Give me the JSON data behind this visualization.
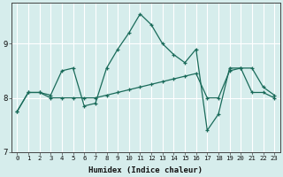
{
  "xlabel": "Humidex (Indice chaleur)",
  "ylabel": "",
  "background_color": "#d6edec",
  "grid_color": "#ffffff",
  "line_color": "#1a6b5a",
  "xlim": [
    -0.5,
    23.5
  ],
  "ylim": [
    7.0,
    9.75
  ],
  "yticks": [
    7,
    8,
    9
  ],
  "xticks": [
    0,
    1,
    2,
    3,
    4,
    5,
    6,
    7,
    8,
    9,
    10,
    11,
    12,
    13,
    14,
    15,
    16,
    17,
    18,
    19,
    20,
    21,
    22,
    23
  ],
  "line1_x": [
    0,
    1,
    2,
    3,
    4,
    5,
    6,
    7,
    8,
    9,
    10,
    11,
    12,
    13,
    14,
    15,
    16,
    17,
    18,
    19,
    20,
    21,
    22,
    23
  ],
  "line1_y": [
    7.75,
    8.1,
    8.1,
    8.0,
    8.0,
    8.0,
    8.0,
    8.0,
    8.05,
    8.1,
    8.15,
    8.2,
    8.25,
    8.3,
    8.35,
    8.4,
    8.45,
    8.0,
    8.0,
    8.5,
    8.55,
    8.1,
    8.1,
    8.0
  ],
  "line2_x": [
    0,
    1,
    2,
    3,
    4,
    5,
    6,
    7,
    8,
    9,
    10,
    11,
    12,
    13,
    14,
    15,
    16,
    17,
    18,
    19,
    20,
    21,
    22,
    23
  ],
  "line2_y": [
    7.75,
    8.1,
    8.1,
    8.05,
    8.5,
    8.55,
    7.85,
    7.9,
    8.55,
    8.9,
    9.2,
    9.55,
    9.35,
    9.0,
    8.8,
    8.65,
    8.9,
    7.4,
    7.7,
    8.55,
    8.55,
    8.55,
    8.2,
    8.05
  ]
}
